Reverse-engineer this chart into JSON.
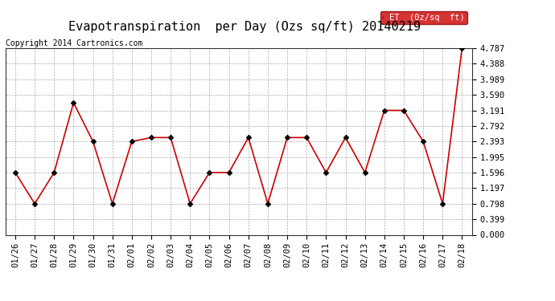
{
  "title": "Evapotranspiration  per Day (Ozs sq/ft) 20140219",
  "copyright": "Copyright 2014 Cartronics.com",
  "legend_label": "ET  (0z/sq  ft)",
  "dates": [
    "01/26",
    "01/27",
    "01/28",
    "01/29",
    "01/30",
    "01/31",
    "02/01",
    "02/02",
    "02/03",
    "02/04",
    "02/05",
    "02/06",
    "02/07",
    "02/08",
    "02/09",
    "02/10",
    "02/11",
    "02/12",
    "02/13",
    "02/14",
    "02/15",
    "02/16",
    "02/17",
    "02/18"
  ],
  "values": [
    1.596,
    0.798,
    1.596,
    3.39,
    2.393,
    0.798,
    2.393,
    2.494,
    2.494,
    0.798,
    1.596,
    1.596,
    2.494,
    0.798,
    2.494,
    2.494,
    1.596,
    2.494,
    1.596,
    3.191,
    3.191,
    2.393,
    0.798,
    4.787
  ],
  "line_color": "#cc0000",
  "marker_color": "#000000",
  "background_color": "#ffffff",
  "grid_color": "#aaaaaa",
  "ylim": [
    0.0,
    4.787
  ],
  "yticks": [
    0.0,
    0.399,
    0.798,
    1.197,
    1.596,
    1.995,
    2.393,
    2.792,
    3.191,
    3.59,
    3.989,
    4.388,
    4.787
  ],
  "legend_bg": "#cc0000",
  "legend_text_color": "#ffffff",
  "title_fontsize": 11,
  "copyright_fontsize": 7,
  "tick_fontsize": 7.5
}
